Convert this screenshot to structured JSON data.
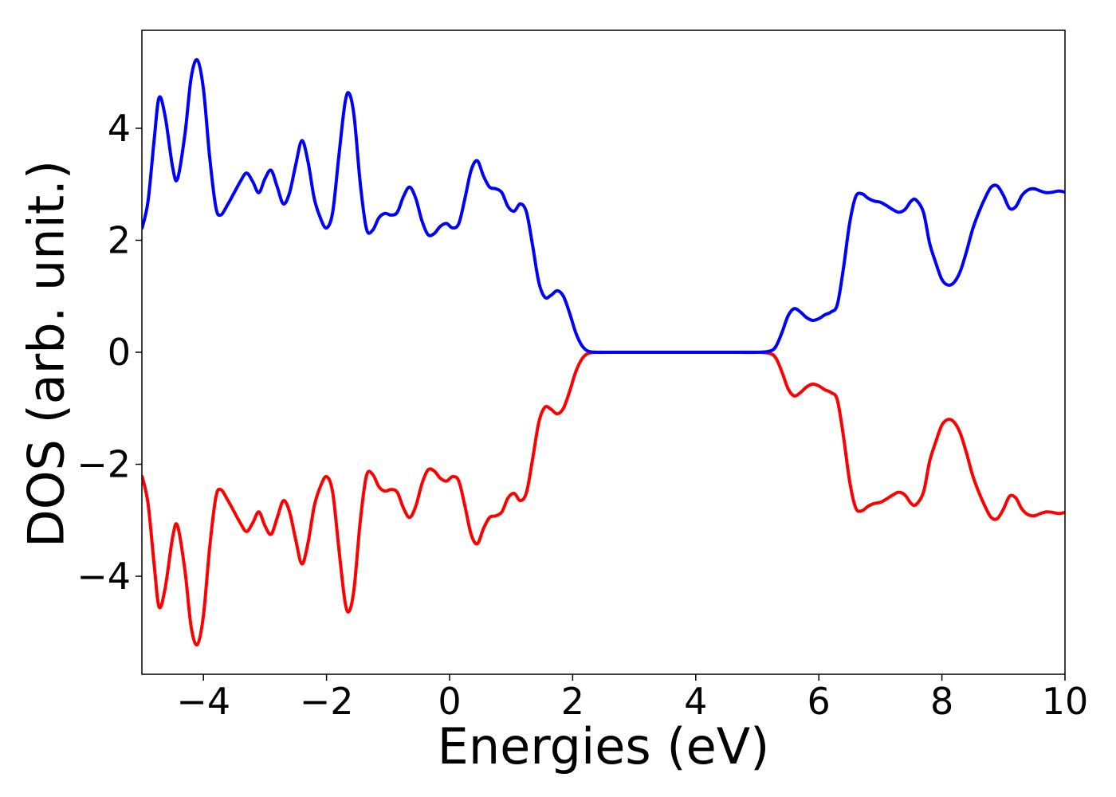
{
  "chart_data": {
    "type": "line",
    "title": "",
    "xlabel": "Energies (eV)",
    "ylabel": "DOS (arb. unit.)",
    "xlim": [
      -5,
      10
    ],
    "ylim": [
      -5.75,
      5.75
    ],
    "xticks": [
      -4,
      -2,
      0,
      2,
      4,
      6,
      8,
      10
    ],
    "xtick_labels": [
      "−4",
      "−2",
      "0",
      "2",
      "4",
      "6",
      "8",
      "10"
    ],
    "yticks": [
      -4,
      -2,
      0,
      2,
      4
    ],
    "ytick_labels": [
      "−4",
      "−2",
      "0",
      "2",
      "4"
    ],
    "grid": false,
    "legend": "none",
    "series": [
      {
        "color": "#0000ff",
        "points": [
          [
            -5.0,
            2.2
          ],
          [
            -4.9,
            2.7
          ],
          [
            -4.8,
            3.8
          ],
          [
            -4.72,
            4.55
          ],
          [
            -4.62,
            4.2
          ],
          [
            -4.5,
            3.3
          ],
          [
            -4.42,
            3.1
          ],
          [
            -4.3,
            3.9
          ],
          [
            -4.2,
            4.9
          ],
          [
            -4.1,
            5.22
          ],
          [
            -4.0,
            4.7
          ],
          [
            -3.9,
            3.5
          ],
          [
            -3.8,
            2.6
          ],
          [
            -3.72,
            2.45
          ],
          [
            -3.6,
            2.65
          ],
          [
            -3.5,
            2.85
          ],
          [
            -3.4,
            3.05
          ],
          [
            -3.3,
            3.2
          ],
          [
            -3.2,
            3.05
          ],
          [
            -3.1,
            2.85
          ],
          [
            -3.0,
            3.1
          ],
          [
            -2.9,
            3.25
          ],
          [
            -2.8,
            2.95
          ],
          [
            -2.7,
            2.65
          ],
          [
            -2.6,
            2.85
          ],
          [
            -2.5,
            3.35
          ],
          [
            -2.4,
            3.78
          ],
          [
            -2.3,
            3.4
          ],
          [
            -2.2,
            2.75
          ],
          [
            -2.1,
            2.4
          ],
          [
            -2.0,
            2.22
          ],
          [
            -1.9,
            2.5
          ],
          [
            -1.8,
            3.5
          ],
          [
            -1.7,
            4.45
          ],
          [
            -1.63,
            4.62
          ],
          [
            -1.55,
            4.2
          ],
          [
            -1.45,
            3.0
          ],
          [
            -1.35,
            2.2
          ],
          [
            -1.25,
            2.18
          ],
          [
            -1.15,
            2.4
          ],
          [
            -1.05,
            2.48
          ],
          [
            -0.95,
            2.45
          ],
          [
            -0.85,
            2.5
          ],
          [
            -0.75,
            2.78
          ],
          [
            -0.65,
            2.95
          ],
          [
            -0.55,
            2.75
          ],
          [
            -0.45,
            2.35
          ],
          [
            -0.35,
            2.1
          ],
          [
            -0.25,
            2.12
          ],
          [
            -0.15,
            2.25
          ],
          [
            -0.05,
            2.3
          ],
          [
            0.05,
            2.22
          ],
          [
            0.15,
            2.3
          ],
          [
            0.25,
            2.75
          ],
          [
            0.35,
            3.25
          ],
          [
            0.45,
            3.42
          ],
          [
            0.55,
            3.15
          ],
          [
            0.65,
            2.95
          ],
          [
            0.75,
            2.92
          ],
          [
            0.85,
            2.85
          ],
          [
            0.95,
            2.6
          ],
          [
            1.05,
            2.52
          ],
          [
            1.15,
            2.65
          ],
          [
            1.25,
            2.5
          ],
          [
            1.35,
            1.9
          ],
          [
            1.45,
            1.25
          ],
          [
            1.55,
            0.98
          ],
          [
            1.65,
            1.02
          ],
          [
            1.75,
            1.1
          ],
          [
            1.85,
            1.0
          ],
          [
            1.95,
            0.7
          ],
          [
            2.05,
            0.35
          ],
          [
            2.15,
            0.12
          ],
          [
            2.25,
            0.02
          ],
          [
            2.4,
            0.0
          ],
          [
            2.6,
            0.0
          ],
          [
            3.0,
            0.0
          ],
          [
            3.5,
            0.0
          ],
          [
            4.0,
            0.0
          ],
          [
            4.5,
            0.0
          ],
          [
            5.0,
            0.0
          ],
          [
            5.2,
            0.02
          ],
          [
            5.3,
            0.1
          ],
          [
            5.4,
            0.35
          ],
          [
            5.5,
            0.65
          ],
          [
            5.6,
            0.78
          ],
          [
            5.7,
            0.72
          ],
          [
            5.8,
            0.62
          ],
          [
            5.9,
            0.57
          ],
          [
            6.0,
            0.6
          ],
          [
            6.1,
            0.67
          ],
          [
            6.2,
            0.72
          ],
          [
            6.3,
            0.85
          ],
          [
            6.4,
            1.5
          ],
          [
            6.5,
            2.3
          ],
          [
            6.6,
            2.78
          ],
          [
            6.7,
            2.83
          ],
          [
            6.8,
            2.75
          ],
          [
            6.9,
            2.7
          ],
          [
            7.0,
            2.68
          ],
          [
            7.1,
            2.62
          ],
          [
            7.2,
            2.55
          ],
          [
            7.3,
            2.5
          ],
          [
            7.4,
            2.55
          ],
          [
            7.5,
            2.7
          ],
          [
            7.58,
            2.72
          ],
          [
            7.7,
            2.5
          ],
          [
            7.8,
            1.95
          ],
          [
            7.9,
            1.6
          ],
          [
            8.0,
            1.3
          ],
          [
            8.1,
            1.2
          ],
          [
            8.2,
            1.25
          ],
          [
            8.3,
            1.45
          ],
          [
            8.4,
            1.8
          ],
          [
            8.5,
            2.2
          ],
          [
            8.6,
            2.5
          ],
          [
            8.7,
            2.75
          ],
          [
            8.8,
            2.95
          ],
          [
            8.9,
            2.97
          ],
          [
            9.0,
            2.8
          ],
          [
            9.1,
            2.57
          ],
          [
            9.2,
            2.6
          ],
          [
            9.3,
            2.8
          ],
          [
            9.4,
            2.9
          ],
          [
            9.5,
            2.92
          ],
          [
            9.6,
            2.88
          ],
          [
            9.7,
            2.85
          ],
          [
            9.8,
            2.86
          ],
          [
            9.9,
            2.88
          ],
          [
            10.0,
            2.86
          ]
        ]
      },
      {
        "color": "#ff0000",
        "mirror_of_first": true
      }
    ]
  }
}
